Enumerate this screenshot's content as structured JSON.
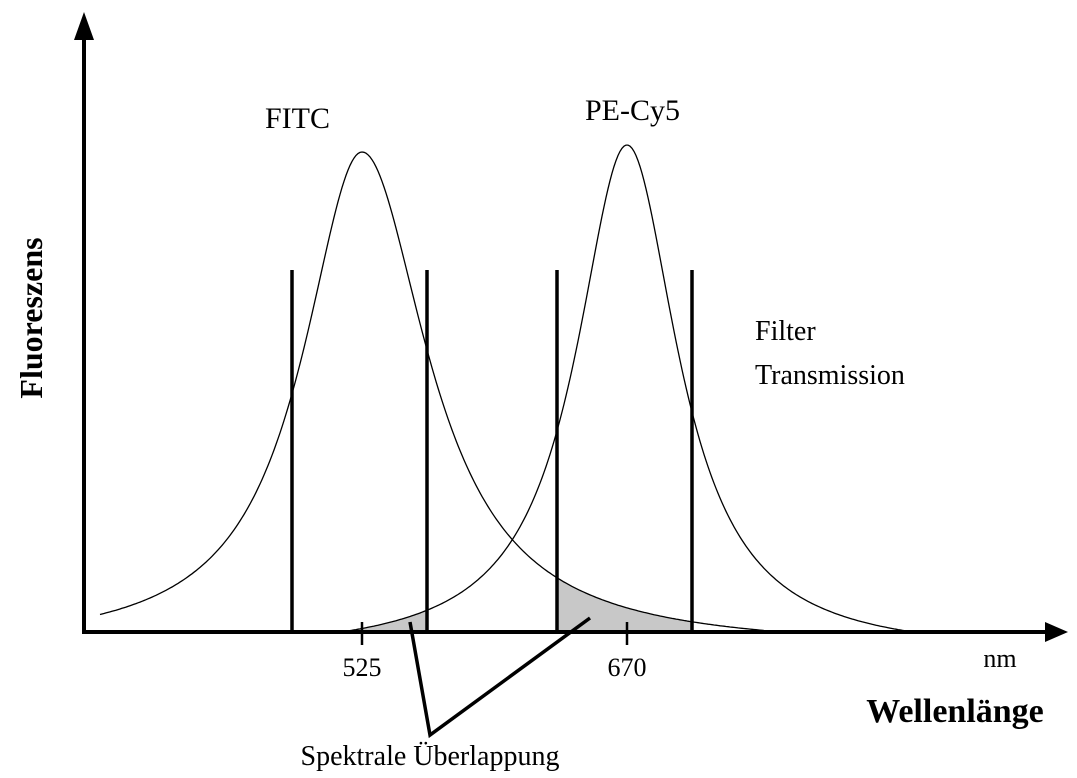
{
  "axes": {
    "y_label": "Fluoreszens",
    "x_label": "Wellenlänge",
    "x_unit": "nm",
    "x_marks": [
      "525",
      "670"
    ]
  },
  "curves": {
    "left": "FITC",
    "right": "PE-Cy5"
  },
  "filter": {
    "line1": "Filter",
    "line2": "Transmission"
  },
  "overlap": "Spektrale Überlappung"
}
